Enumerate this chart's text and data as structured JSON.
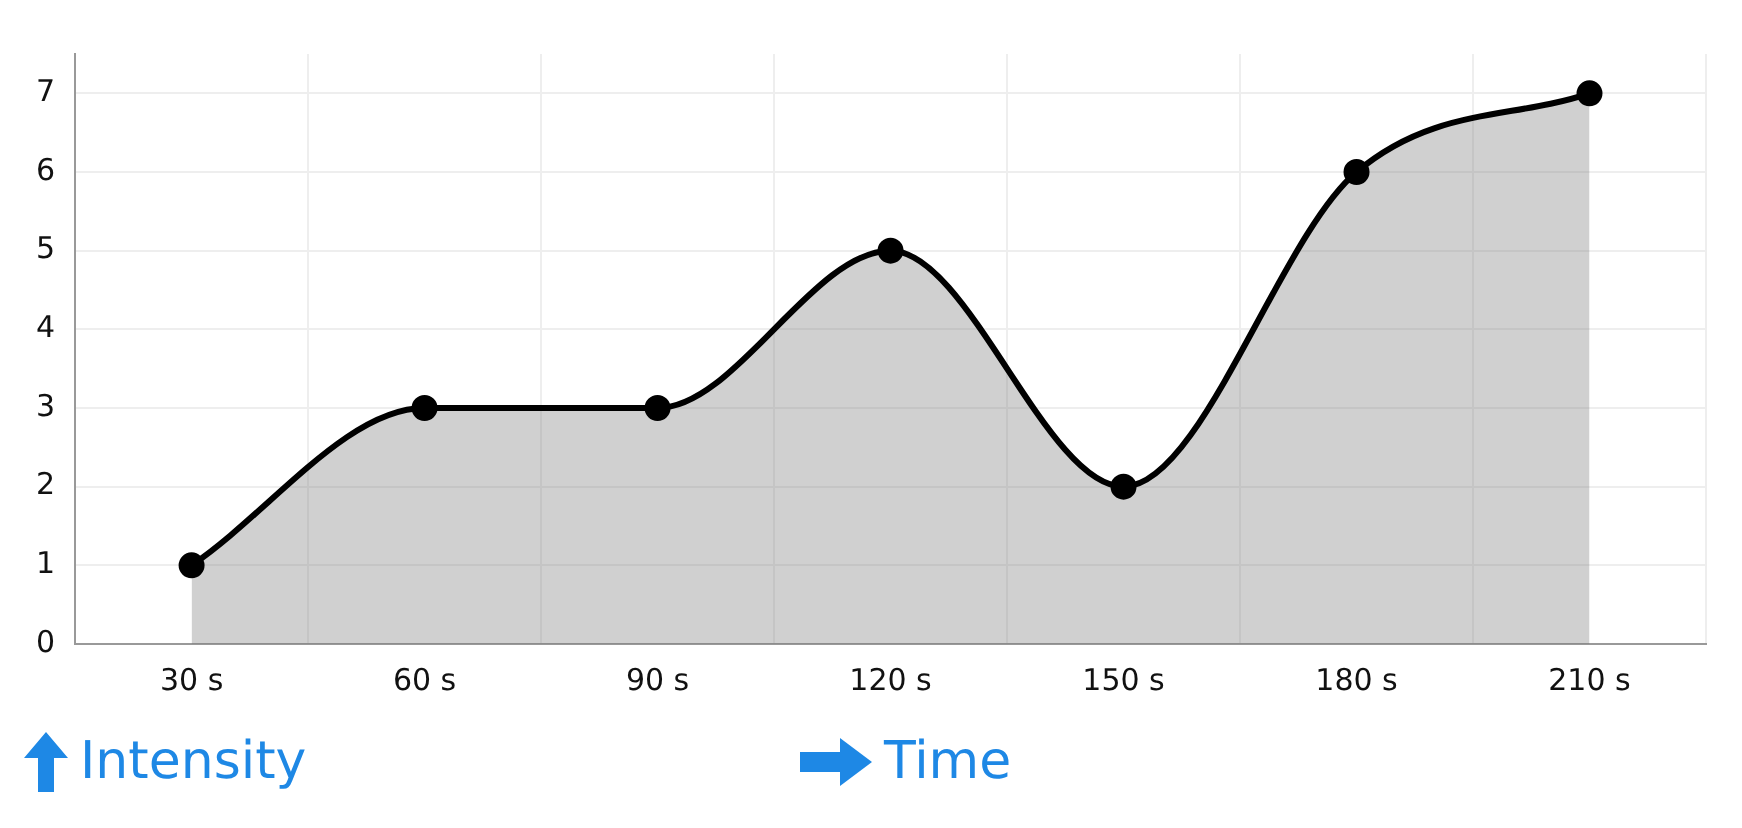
{
  "chart_data": {
    "type": "area",
    "categories": [
      "30 s",
      "60 s",
      "90 s",
      "120 s",
      "150 s",
      "180 s",
      "210 s"
    ],
    "series": [
      {
        "color": "#000000",
        "values": [
          1,
          3,
          3,
          5,
          2,
          6,
          7
        ]
      }
    ],
    "ylim": [
      0,
      7.5
    ],
    "yticks": [
      0,
      1,
      2,
      3,
      4,
      5,
      6,
      7
    ],
    "grid": true,
    "legend": false,
    "marker": "circle",
    "line_style": "solid",
    "xlabel": "Time",
    "annotations": [
      "Intensity"
    ]
  }
}
